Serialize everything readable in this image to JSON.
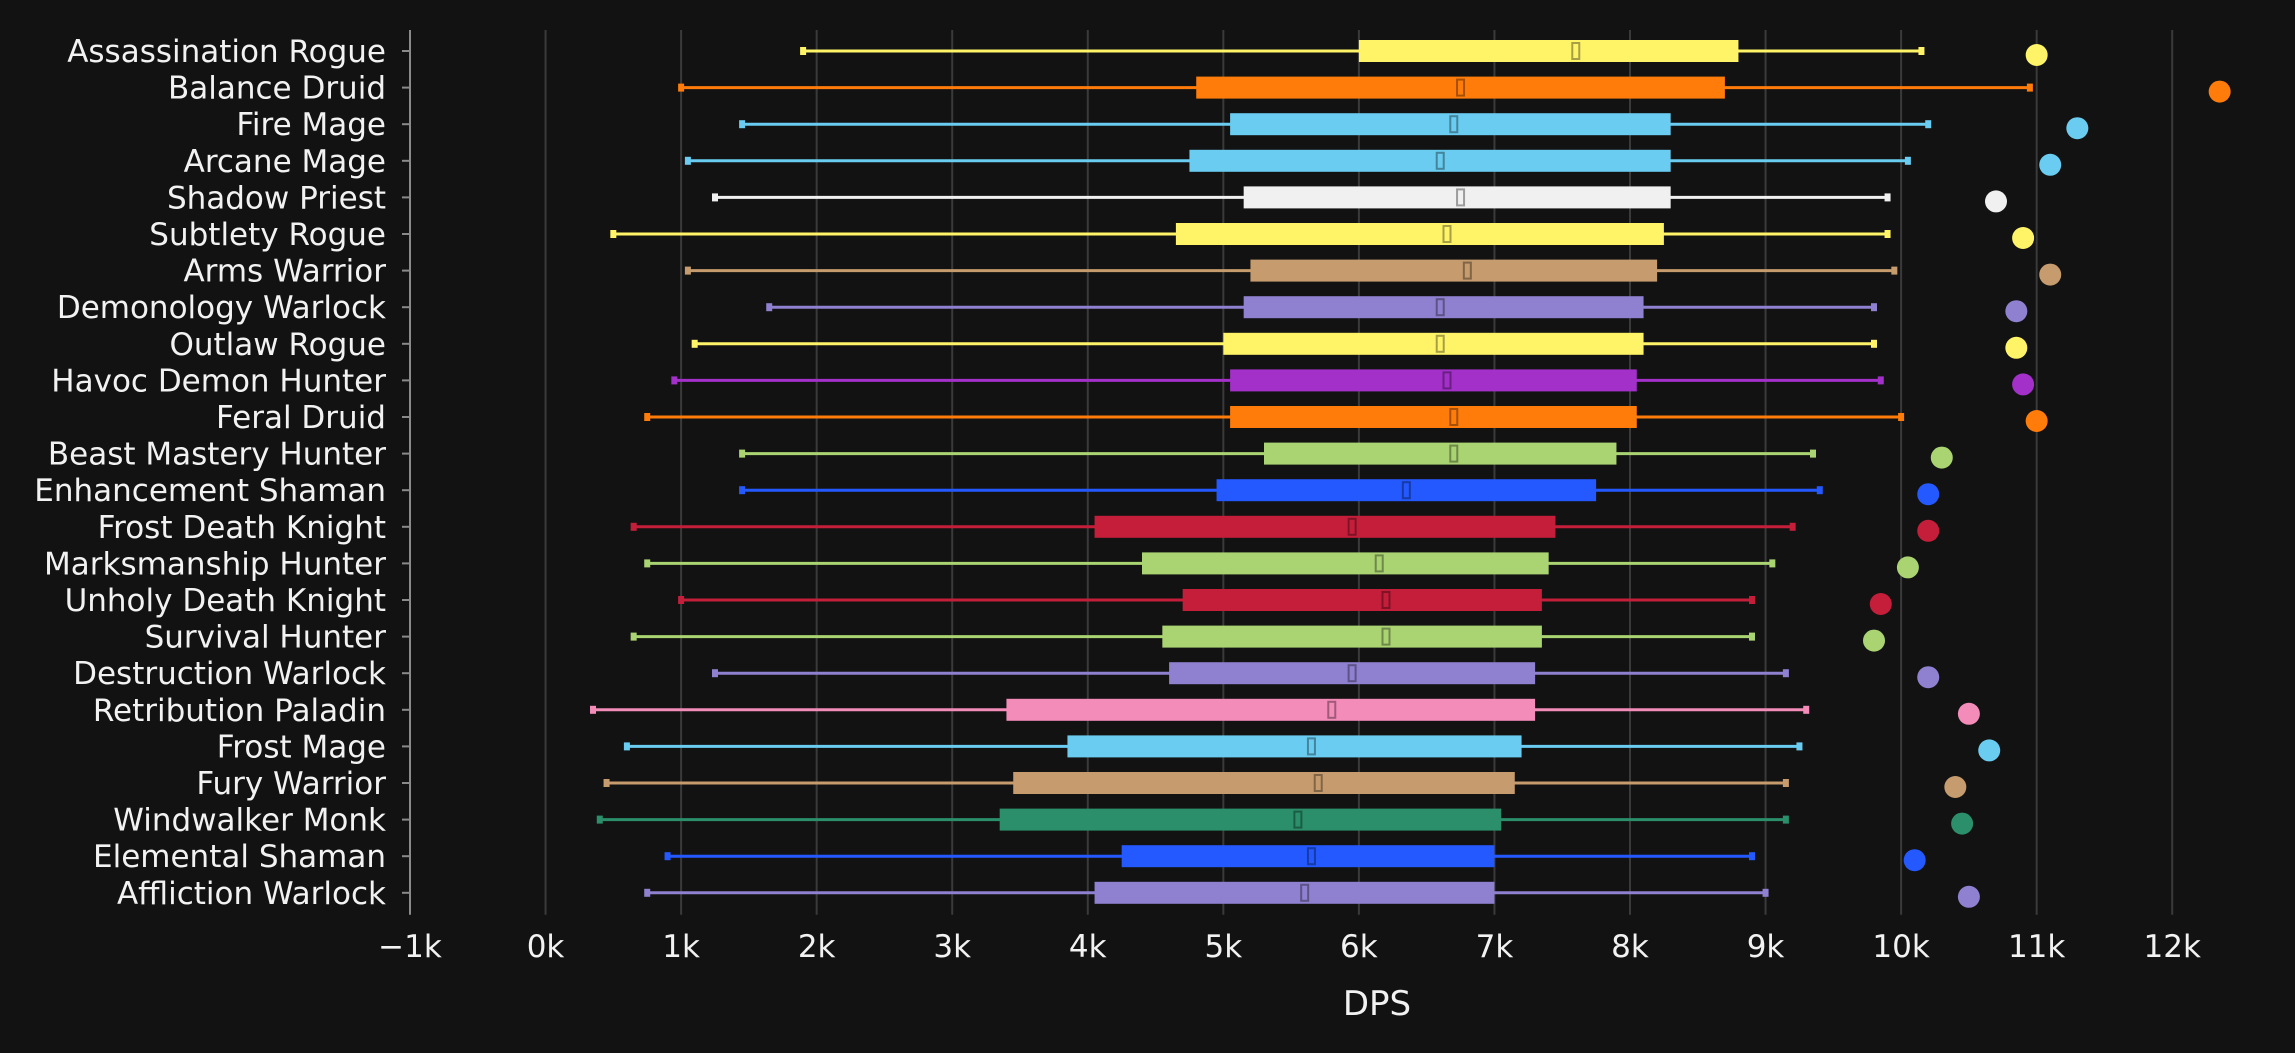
{
  "chart_data": {
    "type": "box",
    "orientation": "horizontal",
    "xlabel": "DPS",
    "xlim": [
      -1000,
      12500
    ],
    "x_ticks": [
      -1000,
      0,
      1000,
      2000,
      3000,
      4000,
      5000,
      6000,
      7000,
      8000,
      9000,
      10000,
      11000,
      12000
    ],
    "x_tick_labels": [
      "−1k",
      "0k",
      "1k",
      "2k",
      "3k",
      "4k",
      "5k",
      "6k",
      "7k",
      "8k",
      "9k",
      "10k",
      "11k",
      "12k"
    ],
    "grid": true,
    "categories": [
      "Assassination Rogue",
      "Balance Druid",
      "Fire Mage",
      "Arcane Mage",
      "Shadow Priest",
      "Subtlety Rogue",
      "Arms Warrior",
      "Demonology Warlock",
      "Outlaw Rogue",
      "Havoc Demon Hunter",
      "Feral Druid",
      "Beast Mastery Hunter",
      "Enhancement Shaman",
      "Frost Death Knight",
      "Marksmanship Hunter",
      "Unholy Death Knight",
      "Survival Hunter",
      "Destruction Warlock",
      "Retribution Paladin",
      "Frost Mage",
      "Fury Warrior",
      "Windwalker Monk",
      "Elemental Shaman",
      "Affliction Warlock"
    ],
    "series": [
      {
        "name": "Assassination Rogue",
        "color": "#FFF468",
        "min": 1900,
        "q1": 6000,
        "median": 7600,
        "q3": 8800,
        "max": 10150,
        "outlier": 11000
      },
      {
        "name": "Balance Druid",
        "color": "#FF7C0A",
        "min": 1000,
        "q1": 4800,
        "median": 6750,
        "q3": 8700,
        "max": 10950,
        "outlier": 12350
      },
      {
        "name": "Fire Mage",
        "color": "#69CCF0",
        "min": 1450,
        "q1": 5050,
        "median": 6700,
        "q3": 8300,
        "max": 10200,
        "outlier": 11300
      },
      {
        "name": "Arcane Mage",
        "color": "#69CCF0",
        "min": 1050,
        "q1": 4750,
        "median": 6600,
        "q3": 8300,
        "max": 10050,
        "outlier": 11100
      },
      {
        "name": "Shadow Priest",
        "color": "#F0F0F0",
        "min": 1250,
        "q1": 5150,
        "median": 6750,
        "q3": 8300,
        "max": 9900,
        "outlier": 10700
      },
      {
        "name": "Subtlety Rogue",
        "color": "#FFF468",
        "min": 500,
        "q1": 4650,
        "median": 6650,
        "q3": 8250,
        "max": 9900,
        "outlier": 10900
      },
      {
        "name": "Arms Warrior",
        "color": "#C69B6D",
        "min": 1050,
        "q1": 5200,
        "median": 6800,
        "q3": 8200,
        "max": 9950,
        "outlier": 11100
      },
      {
        "name": "Demonology Warlock",
        "color": "#8F80D0",
        "min": 1650,
        "q1": 5150,
        "median": 6600,
        "q3": 8100,
        "max": 9800,
        "outlier": 10850
      },
      {
        "name": "Outlaw Rogue",
        "color": "#FFF468",
        "min": 1100,
        "q1": 5000,
        "median": 6600,
        "q3": 8100,
        "max": 9800,
        "outlier": 10850
      },
      {
        "name": "Havoc Demon Hunter",
        "color": "#A330C9",
        "min": 950,
        "q1": 5050,
        "median": 6650,
        "q3": 8050,
        "max": 9850,
        "outlier": 10900
      },
      {
        "name": "Feral Druid",
        "color": "#FF7C0A",
        "min": 750,
        "q1": 5050,
        "median": 6700,
        "q3": 8050,
        "max": 10000,
        "outlier": 11000
      },
      {
        "name": "Beast Mastery Hunter",
        "color": "#AAD372",
        "min": 1450,
        "q1": 5300,
        "median": 6700,
        "q3": 7900,
        "max": 9350,
        "outlier": 10300
      },
      {
        "name": "Enhancement Shaman",
        "color": "#2459FF",
        "min": 1450,
        "q1": 4950,
        "median": 6350,
        "q3": 7750,
        "max": 9400,
        "outlier": 10200
      },
      {
        "name": "Frost Death Knight",
        "color": "#C41E3A",
        "min": 650,
        "q1": 4050,
        "median": 5950,
        "q3": 7450,
        "max": 9200,
        "outlier": 10200
      },
      {
        "name": "Marksmanship Hunter",
        "color": "#AAD372",
        "min": 750,
        "q1": 4400,
        "median": 6150,
        "q3": 7400,
        "max": 9050,
        "outlier": 10050
      },
      {
        "name": "Unholy Death Knight",
        "color": "#C41E3A",
        "min": 1000,
        "q1": 4700,
        "median": 6200,
        "q3": 7350,
        "max": 8900,
        "outlier": 9850
      },
      {
        "name": "Survival Hunter",
        "color": "#AAD372",
        "min": 650,
        "q1": 4550,
        "median": 6200,
        "q3": 7350,
        "max": 8900,
        "outlier": 9800
      },
      {
        "name": "Destruction Warlock",
        "color": "#8F80D0",
        "min": 1250,
        "q1": 4600,
        "median": 5950,
        "q3": 7300,
        "max": 9150,
        "outlier": 10200
      },
      {
        "name": "Retribution Paladin",
        "color": "#F48CBA",
        "min": 350,
        "q1": 3400,
        "median": 5800,
        "q3": 7300,
        "max": 9300,
        "outlier": 10500
      },
      {
        "name": "Frost Mage",
        "color": "#69CCF0",
        "min": 600,
        "q1": 3850,
        "median": 5650,
        "q3": 7200,
        "max": 9250,
        "outlier": 10650
      },
      {
        "name": "Fury Warrior",
        "color": "#C69B6D",
        "min": 450,
        "q1": 3450,
        "median": 5700,
        "q3": 7150,
        "max": 9150,
        "outlier": 10400
      },
      {
        "name": "Windwalker Monk",
        "color": "#2A8F6A",
        "min": 400,
        "q1": 3350,
        "median": 5550,
        "q3": 7050,
        "max": 9150,
        "outlier": 10450
      },
      {
        "name": "Elemental Shaman",
        "color": "#2459FF",
        "min": 900,
        "q1": 4250,
        "median": 5650,
        "q3": 7000,
        "max": 8900,
        "outlier": 10100
      },
      {
        "name": "Affliction Warlock",
        "color": "#8F80D0",
        "min": 750,
        "q1": 4050,
        "median": 5600,
        "q3": 7000,
        "max": 9000,
        "outlier": 10500
      }
    ]
  },
  "colors": {
    "background": "#121212",
    "gridline": "#3a3a3a",
    "text": "#f2f2f2",
    "axis": "#8a8a8a"
  }
}
